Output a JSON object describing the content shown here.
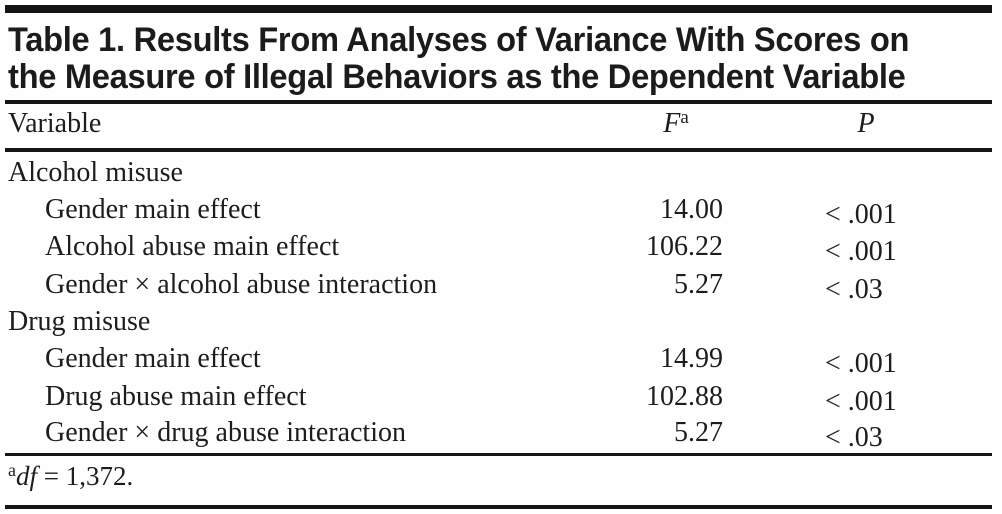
{
  "table": {
    "title_line1": "Table 1. Results From Analyses of Variance With Scores on",
    "title_line2": "the Measure of Illegal Behaviors as the Dependent Variable",
    "columns": {
      "variable": "Variable",
      "f": "F",
      "f_sup": "a",
      "p": "P"
    },
    "rows": [
      {
        "label": "Alcohol misuse",
        "indent": false,
        "f": "",
        "p": ""
      },
      {
        "label": "Gender main effect",
        "indent": true,
        "f": "14.00",
        "p": "< .001"
      },
      {
        "label": "Alcohol abuse main effect",
        "indent": true,
        "f": "106.22",
        "p": "< .001"
      },
      {
        "label": "Gender × alcohol abuse interaction",
        "indent": true,
        "f": "5.27",
        "p": "< .03"
      },
      {
        "label": "Drug misuse",
        "indent": false,
        "f": "",
        "p": ""
      },
      {
        "label": "Gender main effect",
        "indent": true,
        "f": "14.99",
        "p": "< .001"
      },
      {
        "label": "Drug abuse main effect",
        "indent": true,
        "f": "102.88",
        "p": "< .001"
      },
      {
        "label": "Gender × drug abuse interaction",
        "indent": true,
        "f": "5.27",
        "p": "< .03"
      }
    ],
    "footnote": {
      "marker": "a",
      "df": "df",
      "rest": " = 1,372."
    },
    "colors": {
      "text": "#1d1d1d",
      "rule": "#161616",
      "background": "#fefefe"
    }
  }
}
